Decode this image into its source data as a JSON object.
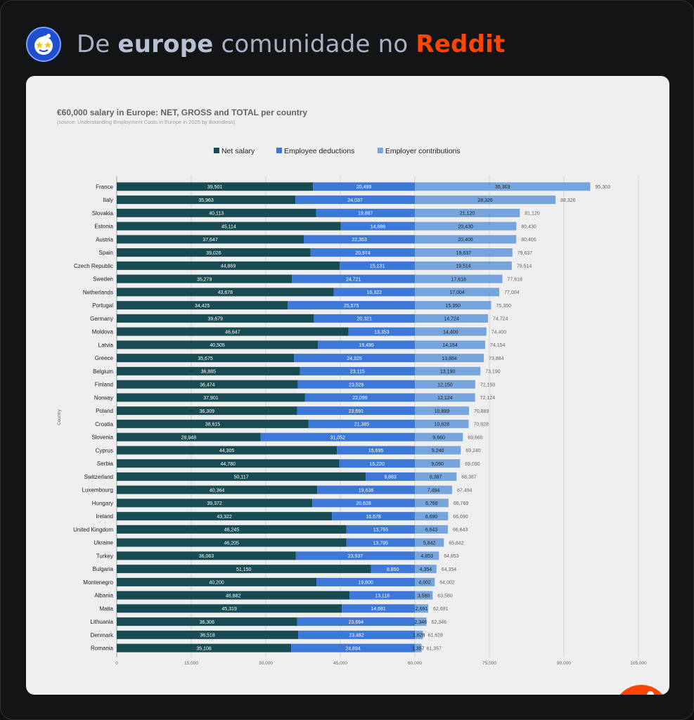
{
  "header": {
    "prefix": "De",
    "community": "europe",
    "middle": "comunidade no",
    "brand": "Reddit"
  },
  "icons": {
    "avatar": "community-avatar-icon",
    "badge": "reddit-snoo-icon"
  },
  "colors": {
    "net": "#184c52",
    "deductions": "#3c78d8",
    "employer": "#76a5dd",
    "brand": "#ff4500"
  },
  "chart_data": {
    "type": "bar",
    "orientation": "horizontal",
    "stacked": true,
    "title": "€60,000 salary in Europe: NET, GROSS and TOTAL per country",
    "subtitle": "(source: Understanding Employment Costs in Europe in 2025 by Boundless)",
    "ylabel": "Country",
    "xlabel": "",
    "xlim": [
      0,
      105000
    ],
    "xticks": [
      "0",
      "15,000",
      "30,000",
      "45,000",
      "60,000",
      "75,000",
      "90,000",
      "105,000"
    ],
    "grid": true,
    "legend_position": "top",
    "categories": [
      "France",
      "Italy",
      "Slovakia",
      "Estonia",
      "Austria",
      "Spain",
      "Czech Republic",
      "Sweden",
      "Netherlands",
      "Portugal",
      "Germany",
      "Moldova",
      "Latvia",
      "Greece",
      "Belgium",
      "Finland",
      "Norway",
      "Poland",
      "Croatia",
      "Slovenia",
      "Cyprus",
      "Serbia",
      "Switzerland",
      "Luxembourg",
      "Hungary",
      "Ireland",
      "United Kingdom",
      "Ukraine",
      "Turkey",
      "Bulgaria",
      "Montenegro",
      "Albania",
      "Malta",
      "Lithuania",
      "Denmark",
      "Romania"
    ],
    "series": [
      {
        "name": "Net salary",
        "values": [
          39501,
          35963,
          40113,
          45114,
          37647,
          39026,
          44869,
          35279,
          43678,
          34425,
          39679,
          46647,
          40505,
          35675,
          36885,
          36474,
          37901,
          36309,
          38615,
          28948,
          44305,
          44780,
          50117,
          40364,
          39372,
          43322,
          46245,
          46205,
          36063,
          51150,
          40200,
          46882,
          45319,
          36306,
          36518,
          35106
        ],
        "labels": [
          "39,501",
          "35,963",
          "40,113",
          "45,114",
          "37,647",
          "39,026",
          "44,869",
          "35,279",
          "43,678",
          "34,425",
          "39,679",
          "46,647",
          "40,505",
          "35,675",
          "36,885",
          "36,474",
          "37,901",
          "36,309",
          "38,615",
          "28,948",
          "44,305",
          "44,780",
          "50,117",
          "40,364",
          "39,372",
          "43,322",
          "46,245",
          "46,205",
          "36,063",
          "51,150",
          "40,200",
          "46,882",
          "45,319",
          "36,306",
          "36,518",
          "35,106"
        ]
      },
      {
        "name": "Employee deductions",
        "values": [
          20499,
          24037,
          19887,
          14886,
          22353,
          20974,
          15131,
          24721,
          16322,
          25575,
          20321,
          13353,
          19495,
          24325,
          23115,
          23526,
          22099,
          23691,
          21385,
          31052,
          15695,
          15220,
          9883,
          19636,
          20628,
          16678,
          13755,
          13795,
          23937,
          8850,
          19800,
          13118,
          14681,
          23694,
          23482,
          24894
        ],
        "labels": [
          "20,499",
          "24,037",
          "19,887",
          "14,886",
          "22,353",
          "20,974",
          "15,131",
          "24,721",
          "16,322",
          "25,575",
          "20,321",
          "13,353",
          "19,495",
          "24,325",
          "23,115",
          "23,526",
          "22,099",
          "23,691",
          "21,385",
          "31,052",
          "15,695",
          "15,220",
          "9,883",
          "19,636",
          "20,628",
          "16,678",
          "13,755",
          "13,795",
          "23,937",
          "8,850",
          "19,800",
          "13,118",
          "14,681",
          "23,694",
          "23,482",
          "24,894"
        ]
      },
      {
        "name": "Employer contributions",
        "values": [
          35303,
          28326,
          21120,
          20430,
          20406,
          19637,
          19514,
          17618,
          17004,
          15350,
          14724,
          14400,
          14154,
          13884,
          13190,
          12150,
          12124,
          10889,
          10828,
          9660,
          9240,
          9090,
          8387,
          7494,
          6769,
          6690,
          6643,
          5842,
          4853,
          4354,
          4002,
          3580,
          2691,
          2346,
          1628,
          1357
        ],
        "labels": [
          "35,303",
          "28,326",
          "21,120",
          "20,430",
          "20,406",
          "19,637",
          "19,514",
          "17,618",
          "17,004",
          "15,350",
          "14,724",
          "14,400",
          "14,154",
          "13,884",
          "13,190",
          "12,150",
          "12,124",
          "10,889",
          "10,828",
          "9,660",
          "9,240",
          "9,090",
          "8,387",
          "7,494",
          "6,769",
          "6,690",
          "6,643",
          "5,842",
          "4,853",
          "4,354",
          "4,002",
          "3,580",
          "2,691",
          "2,346",
          "1,628",
          "1,357"
        ]
      }
    ],
    "totals": [
      95303,
      88326,
      81120,
      80430,
      80406,
      79637,
      79514,
      77618,
      77004,
      75350,
      74724,
      74400,
      74154,
      73884,
      73190,
      72150,
      72124,
      70889,
      70828,
      69660,
      69240,
      69090,
      68387,
      67494,
      66769,
      66690,
      66643,
      65842,
      64853,
      64354,
      64002,
      63580,
      62691,
      62346,
      61628,
      61357
    ],
    "total_labels": [
      "95,303",
      "88,326",
      "81,120",
      "80,430",
      "80,406",
      "79,637",
      "79,514",
      "77,618",
      "77,004",
      "75,350",
      "74,724",
      "74,400",
      "74,154",
      "73,884",
      "73,190",
      "72,150",
      "72,124",
      "70,889",
      "70,828",
      "69,660",
      "69,240",
      "69,090",
      "68,387",
      "67,494",
      "66,769",
      "66,690",
      "66,643",
      "65,842",
      "64,853",
      "64,354",
      "64,002",
      "63,580",
      "62,691",
      "62,346",
      "61,628",
      "61,357"
    ]
  }
}
